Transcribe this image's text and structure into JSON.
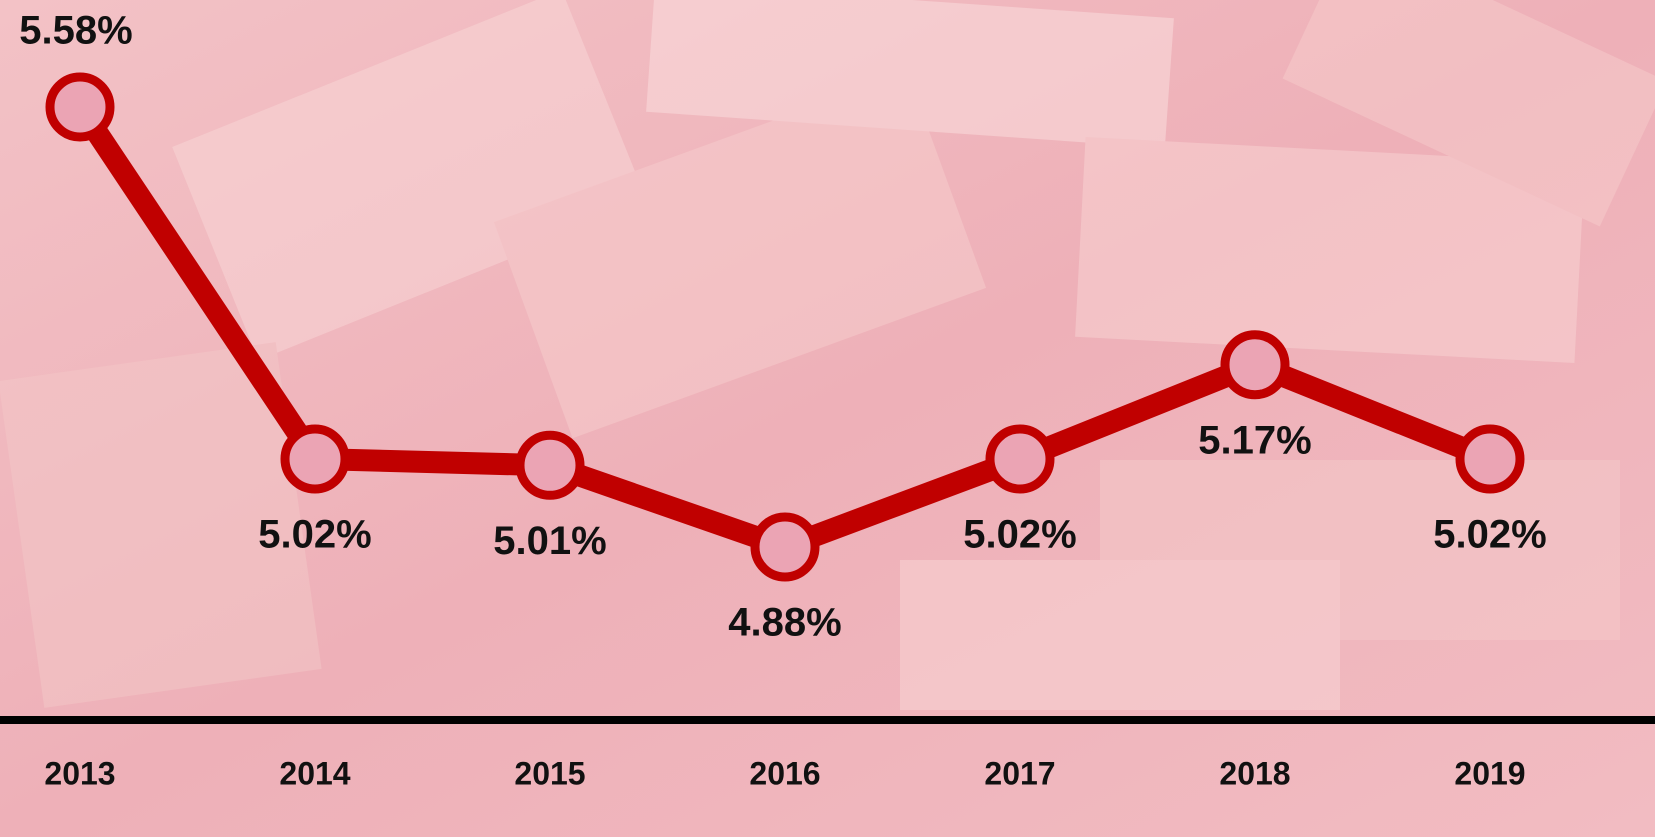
{
  "chart_data": {
    "type": "line",
    "categories": [
      "2013",
      "2014",
      "2015",
      "2016",
      "2017",
      "2018",
      "2019"
    ],
    "series": [
      {
        "color": "#c00000",
        "values": [
          5.58,
          5.02,
          5.01,
          4.88,
          5.02,
          5.17,
          5.02
        ],
        "value_labels": [
          "5.58%",
          "5.02%",
          "5.01%",
          "4.88%",
          "5.02%",
          "5.17%",
          "5.02%"
        ]
      }
    ]
  }
}
